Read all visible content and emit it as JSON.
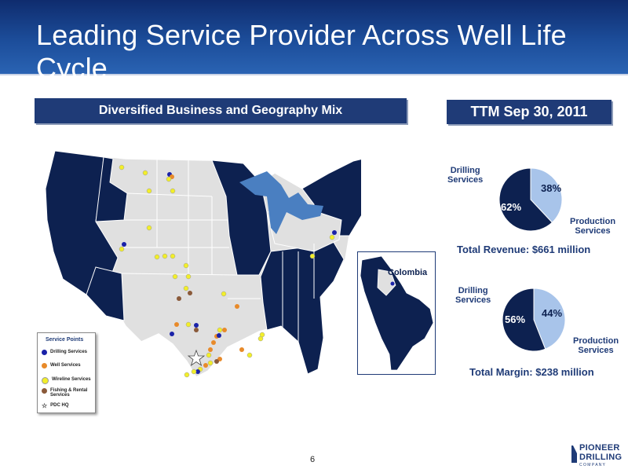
{
  "title": "Leading Service Provider Across Well Life Cycle",
  "left_banner": "Diversified Business and Geography Mix",
  "right_banner": "TTM Sep 30, 2011",
  "colors": {
    "dark_navy": "#0d2150",
    "light_blue": "#a8c4ea",
    "banner": "#1f3b77",
    "map_gray": "#e0e0e0",
    "lakes": "#4a7fc1"
  },
  "map": {
    "inset_label": "Colombia",
    "legend": {
      "title": "Service Points",
      "items": [
        {
          "label": "Drilling Services",
          "color": "#1a22a8"
        },
        {
          "label": "Well Services",
          "color": "#e88a2a"
        },
        {
          "label": "Wireline Services",
          "color": "#f2ee2a"
        },
        {
          "label": "Fishing & Rental Services",
          "color": "#8a5a3a"
        },
        {
          "label": "PDC HQ",
          "icon": "star-icon"
        }
      ]
    }
  },
  "chart_data": [
    {
      "type": "pie",
      "title": "Total Revenue:  $661 million",
      "series": [
        {
          "name": "Drilling Services",
          "value": 62,
          "label": "62%",
          "color": "#0d2150"
        },
        {
          "name": "Production Services",
          "value": 38,
          "label": "38%",
          "color": "#a8c4ea"
        }
      ]
    },
    {
      "type": "pie",
      "title": "Total Margin: $238 million",
      "series": [
        {
          "name": "Drilling Services",
          "value": 56,
          "label": "56%",
          "color": "#0d2150"
        },
        {
          "name": "Production Services",
          "value": 44,
          "label": "44%",
          "color": "#a8c4ea"
        }
      ]
    }
  ],
  "labels": {
    "drilling_line1": "Drilling",
    "drilling_line2": "Services",
    "production_line1": "Production",
    "production_line2": "Services"
  },
  "page_number": "6",
  "logo": {
    "line1": "PIONEER",
    "line2": "DRILLING",
    "line3": "C O M P A N Y"
  }
}
